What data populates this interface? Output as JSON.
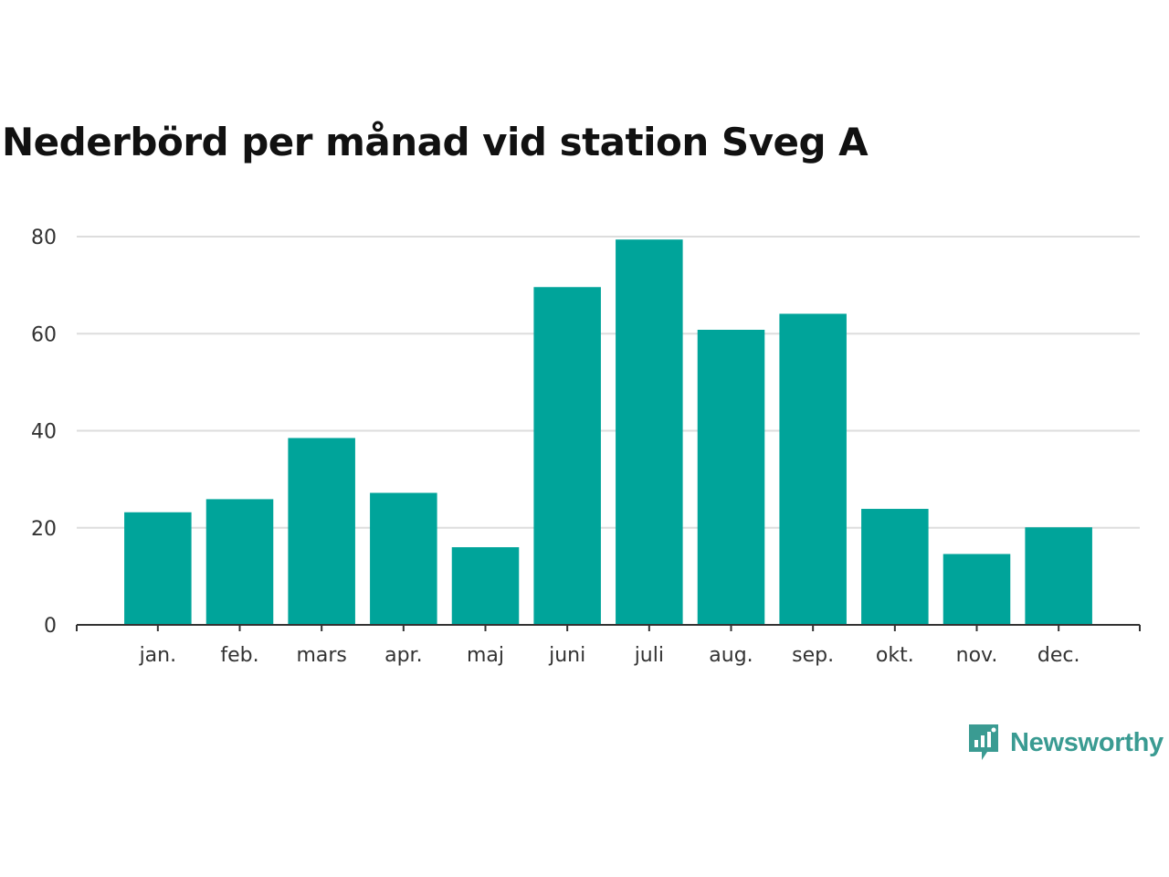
{
  "chart_data": {
    "type": "bar",
    "title": "Nederbörd per månad vid station Sveg A",
    "categories": [
      "jan.",
      "feb.",
      "mars",
      "apr.",
      "maj",
      "juni",
      "juli",
      "aug.",
      "sep.",
      "okt.",
      "nov.",
      "dec."
    ],
    "values": [
      23.2,
      25.9,
      38.5,
      27.2,
      16.0,
      69.6,
      79.4,
      60.8,
      64.1,
      23.9,
      14.6,
      20.1
    ],
    "ylim": [
      0,
      80
    ],
    "yticks": [
      0,
      20,
      40,
      60,
      80
    ],
    "xlabel": "",
    "ylabel": "",
    "grid": true,
    "legend": "none",
    "colors": {
      "bar": "#00a49a",
      "grid": "#dddddd",
      "axis": "#333333"
    }
  },
  "brand": {
    "name": "Newsworthy",
    "icon": "newsworthy-logo-icon",
    "color": "#3a9b92"
  }
}
